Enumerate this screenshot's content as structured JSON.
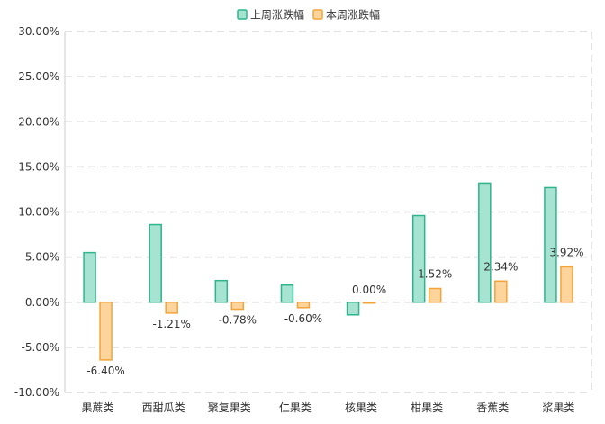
{
  "chart_data": {
    "type": "bar",
    "title": "",
    "xlabel": "",
    "ylabel": "",
    "categories": [
      "果蔗类",
      "西甜瓜类",
      "聚复果类",
      "仁果类",
      "核果类",
      "柑果类",
      "香蕉类",
      "浆果类"
    ],
    "series": [
      {
        "name": "上周涨跌幅",
        "values": [
          5.5,
          8.6,
          2.4,
          1.9,
          -1.4,
          9.6,
          13.2,
          12.7
        ],
        "fill": "#a6e3d0",
        "stroke": "#2fb48c"
      },
      {
        "name": "本周涨跌幅",
        "values": [
          -6.4,
          -1.21,
          -0.78,
          -0.6,
          0.0,
          1.52,
          2.34,
          3.92
        ],
        "fill": "#fdd49c",
        "stroke": "#f2a43a"
      }
    ],
    "data_labels_series": 1,
    "data_labels": [
      "-6.40%",
      "-1.21%",
      "-0.78%",
      "-0.60%",
      "0.00%",
      "1.52%",
      "2.34%",
      "3.92%"
    ],
    "y_ticks": [
      "30.00%",
      "25.00%",
      "20.00%",
      "15.00%",
      "10.00%",
      "5.00%",
      "0.00%",
      "-5.00%",
      "-10.00%"
    ],
    "y_tick_values": [
      30,
      25,
      20,
      15,
      10,
      5,
      0,
      -5,
      -10
    ],
    "ylim": [
      -10,
      30
    ],
    "grid": true,
    "legend_position": "top-center"
  }
}
